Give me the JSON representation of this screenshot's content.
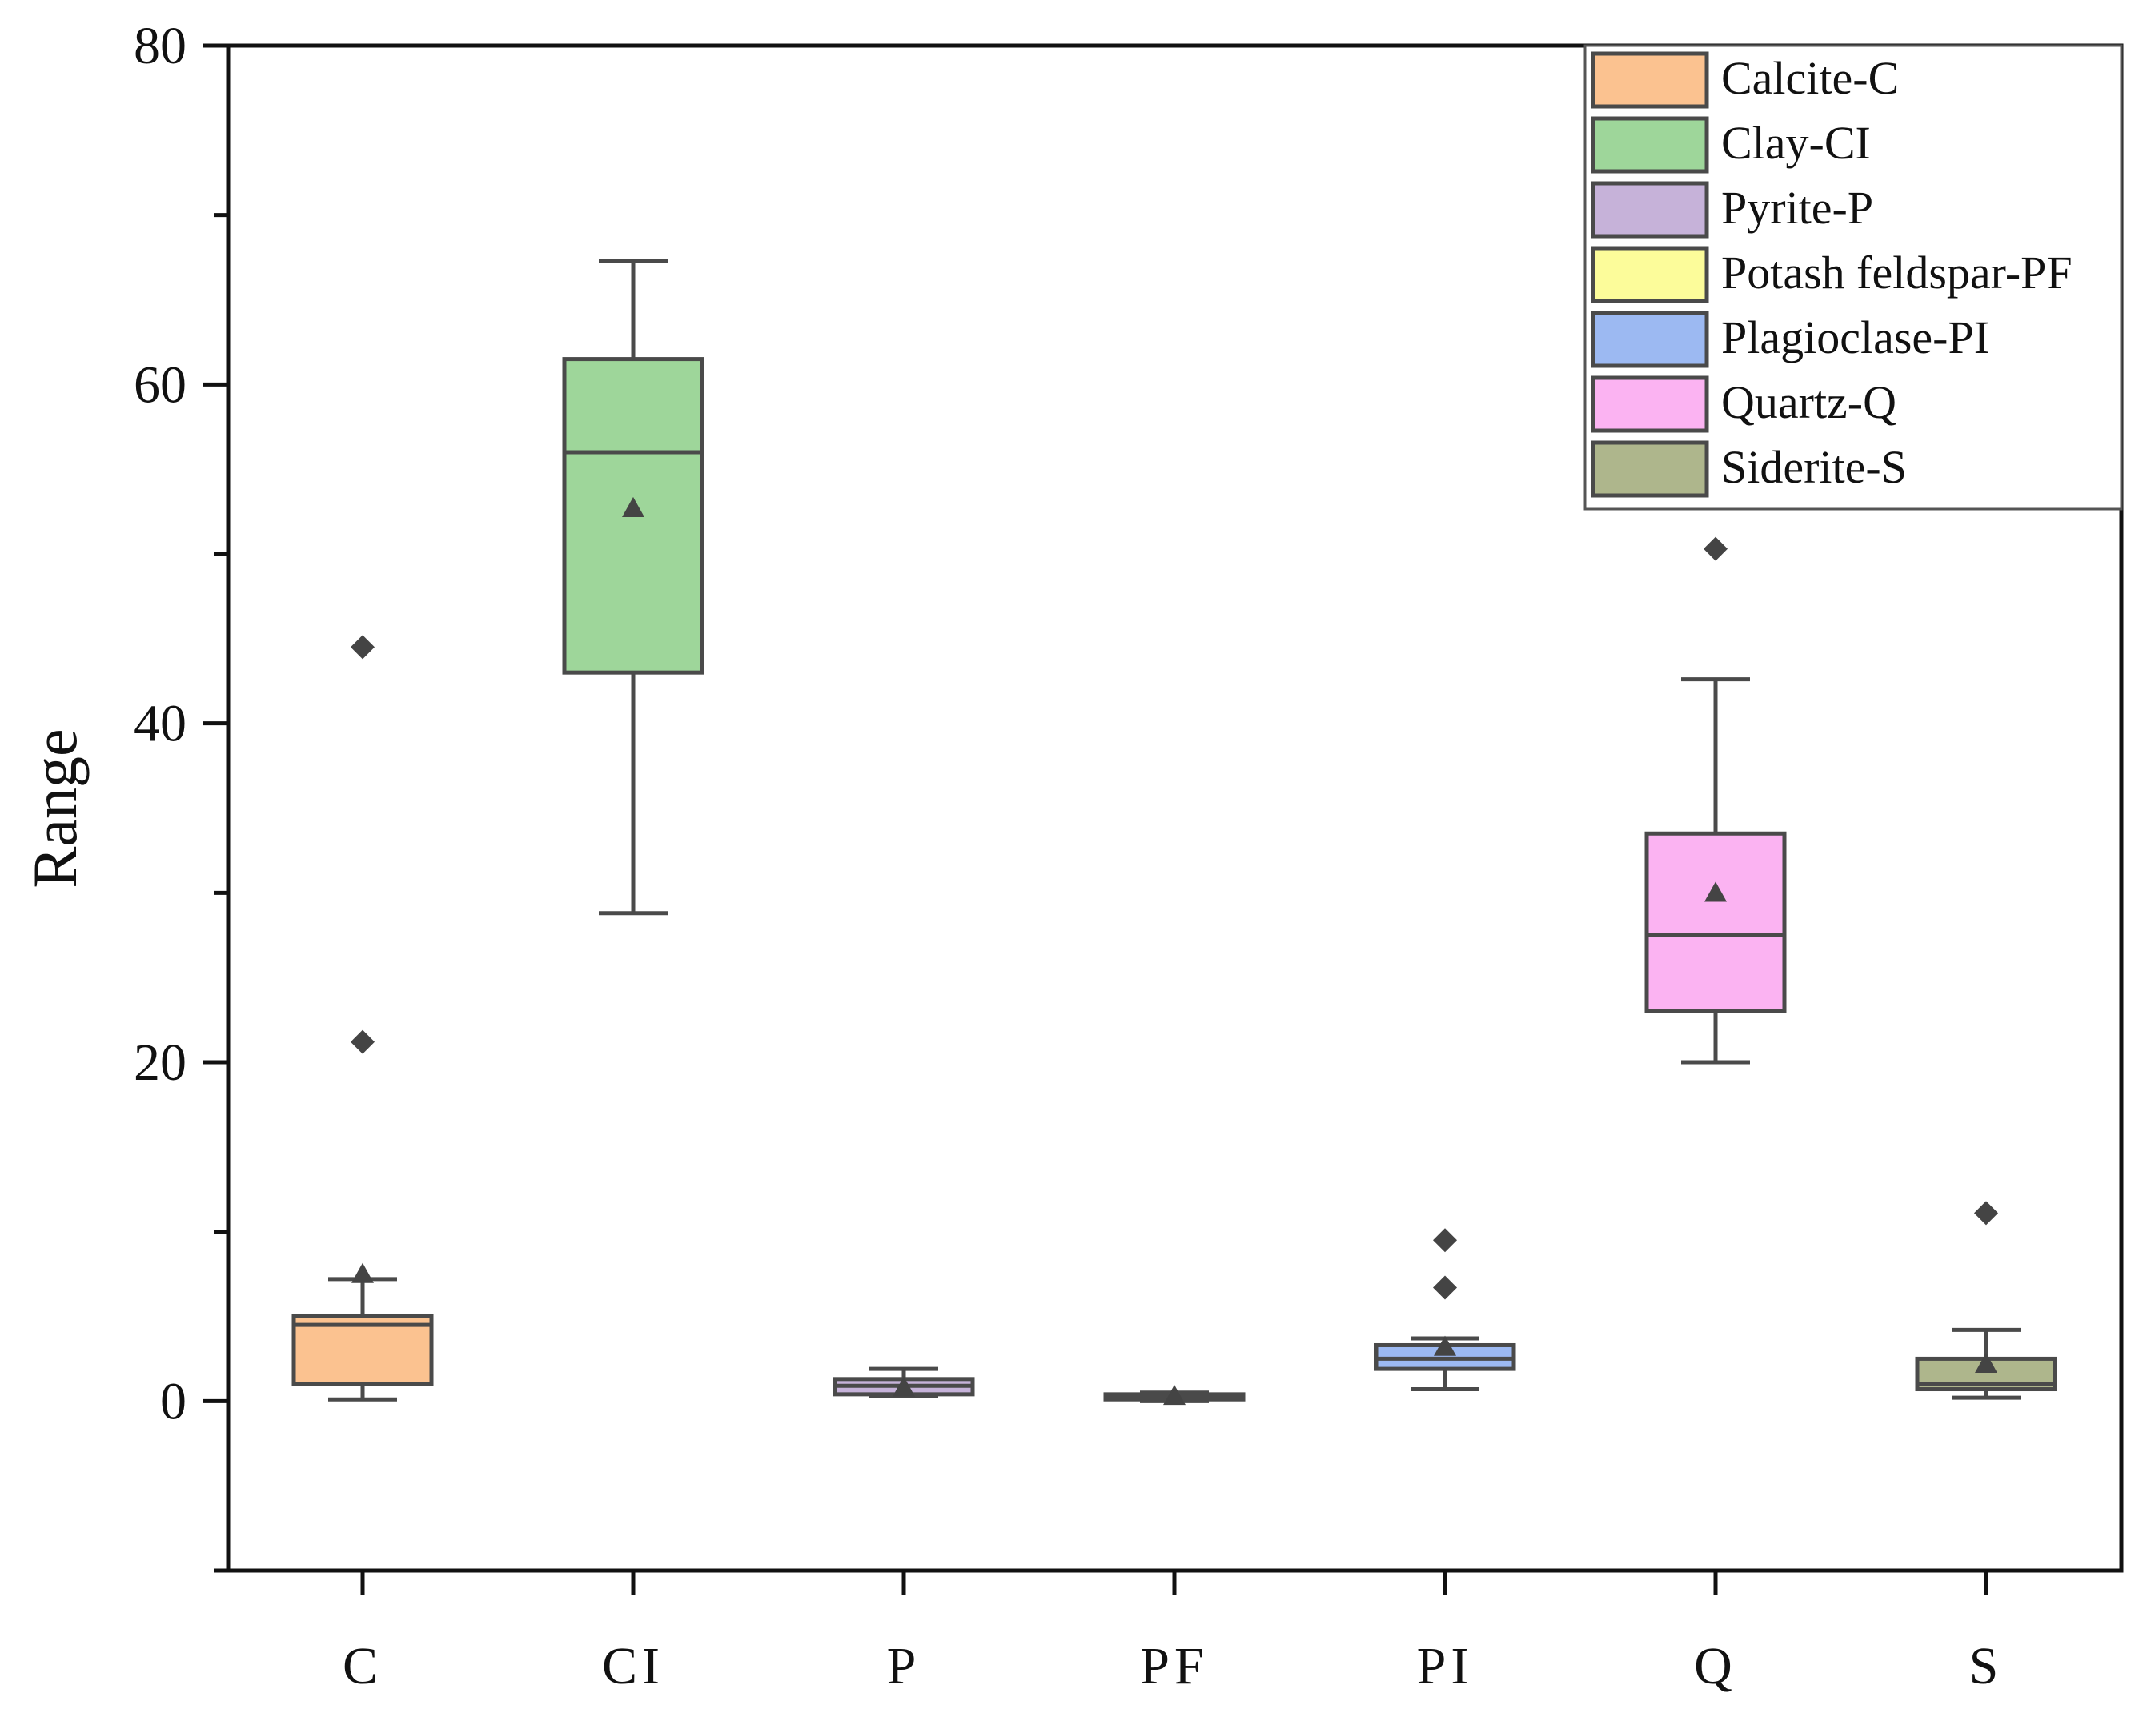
{
  "chart_data": {
    "type": "box",
    "title": "",
    "xlabel": "",
    "ylabel": "Range",
    "ylim": [
      -10,
      80
    ],
    "yticks": [
      0,
      20,
      40,
      60,
      80
    ],
    "grid": false,
    "legend_position": "top-right",
    "categories": [
      "C",
      "CI",
      "P",
      "PF",
      "PI",
      "Q",
      "S"
    ],
    "series": [
      {
        "name": "Calcite-C",
        "category": "C",
        "color": "#FBC290",
        "whisker_low": 0.1,
        "q1": 1.0,
        "median": 4.5,
        "q3": 5.0,
        "whisker_high": 7.2,
        "mean": 7.5,
        "outliers": [
          44.5,
          21.2
        ]
      },
      {
        "name": "Clay-CI",
        "category": "CI",
        "color": "#9ED69A",
        "whisker_low": 28.8,
        "q1": 43.0,
        "median": 56.0,
        "q3": 61.5,
        "whisker_high": 67.3,
        "mean": 52.7,
        "outliers": []
      },
      {
        "name": "Pyrite-P",
        "category": "P",
        "color": "#C6B2D9",
        "whisker_low": 0.3,
        "q1": 0.4,
        "median": 0.9,
        "q3": 1.3,
        "whisker_high": 1.9,
        "mean": 0.8,
        "outliers": []
      },
      {
        "name": "Potash feldspar-PF",
        "category": "PF",
        "color": "#FCFC9A",
        "whisker_low": 0.0,
        "q1": 0.1,
        "median": 0.2,
        "q3": 0.4,
        "whisker_high": 0.5,
        "mean": 0.3,
        "outliers": []
      },
      {
        "name": "Plagioclase-PI",
        "category": "PI",
        "color": "#9CB9F2",
        "whisker_low": 0.7,
        "q1": 1.9,
        "median": 2.5,
        "q3": 3.3,
        "whisker_high": 3.7,
        "mean": 3.2,
        "outliers": [
          9.5,
          6.7
        ]
      },
      {
        "name": "Quartz-Q",
        "category": "Q",
        "color": "#FBB3F2",
        "whisker_low": 20.0,
        "q1": 23.0,
        "median": 27.5,
        "q3": 33.5,
        "whisker_high": 42.6,
        "mean": 30.0,
        "outliers": [
          50.3
        ]
      },
      {
        "name": "Siderite-S",
        "category": "S",
        "color": "#AEB68C",
        "whisker_low": 0.2,
        "q1": 0.7,
        "median": 1.0,
        "q3": 2.5,
        "whisker_high": 4.2,
        "mean": 2.2,
        "outliers": [
          11.1
        ]
      }
    ]
  }
}
